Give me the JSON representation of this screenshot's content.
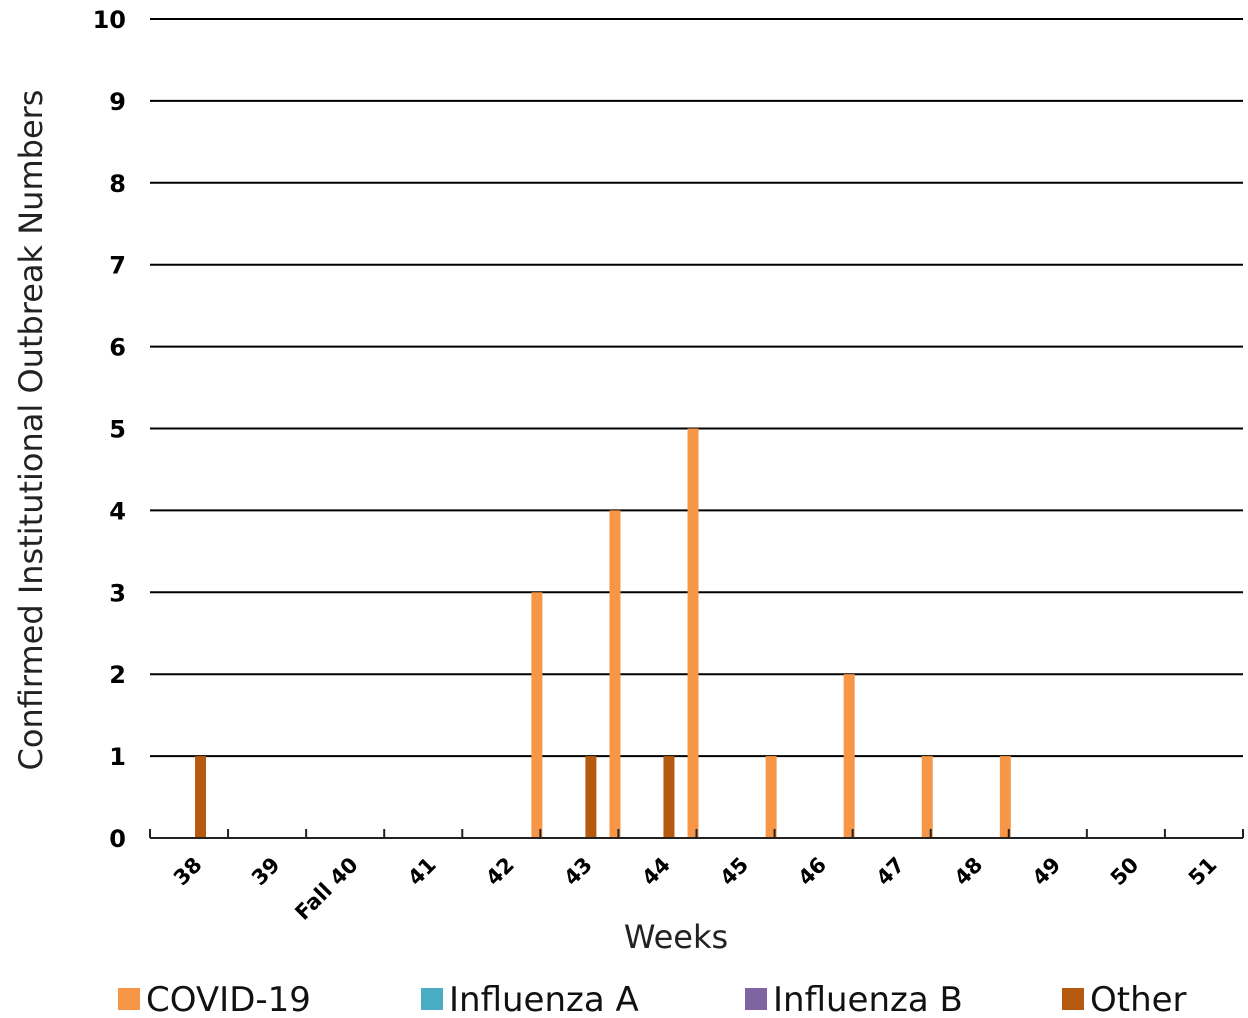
{
  "chart_data": {
    "type": "bar",
    "title": "",
    "xlabel": "Weeks",
    "ylabel": "Confirmed Institutional Outbreak Numbers",
    "ylim": [
      0,
      10
    ],
    "yticks": [
      "0",
      "1",
      "2",
      "3",
      "4",
      "5",
      "6",
      "7",
      "8",
      "9",
      "10"
    ],
    "categories": [
      "38",
      "39",
      "Fall 40",
      "41",
      "42",
      "43",
      "44",
      "45",
      "46",
      "47",
      "48",
      "49",
      "50",
      "51"
    ],
    "grid": true,
    "legend_position": "bottom",
    "series": [
      {
        "name": "COVID-19",
        "color": "#F79646",
        "values": [
          0,
          0,
          0,
          0,
          0,
          3,
          4,
          5,
          1,
          2,
          1,
          1,
          0,
          0
        ]
      },
      {
        "name": "Influenza A",
        "color": "#4BACC6",
        "values": [
          0,
          0,
          0,
          0,
          0,
          0,
          0,
          0,
          0,
          0,
          0,
          0,
          0,
          0
        ]
      },
      {
        "name": "Influenza B",
        "color": "#8064A2",
        "values": [
          0,
          0,
          0,
          0,
          0,
          0,
          0,
          0,
          0,
          0,
          0,
          0,
          0,
          0
        ]
      },
      {
        "name": "Other",
        "color": "#B55A0F",
        "values": [
          1,
          0,
          0,
          0,
          0,
          1,
          1,
          0,
          0,
          0,
          0,
          0,
          0,
          0
        ]
      }
    ]
  }
}
